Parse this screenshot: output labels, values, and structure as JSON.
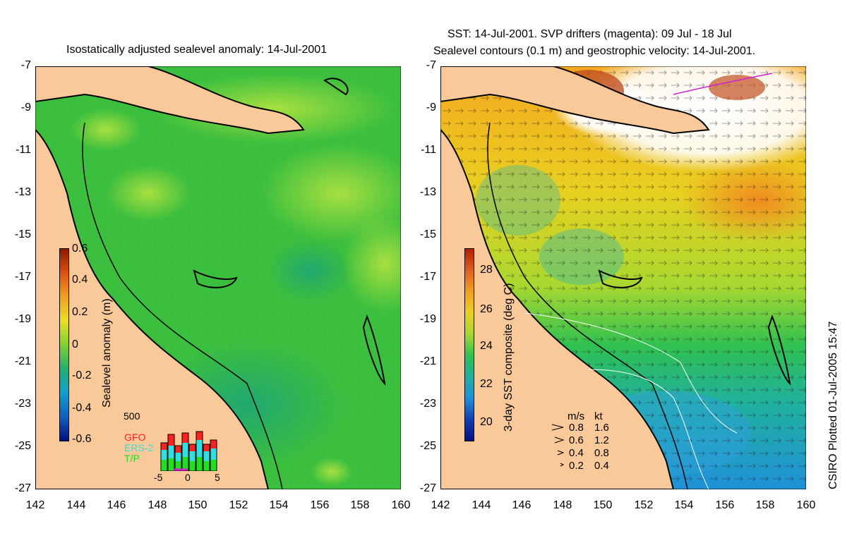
{
  "left_panel": {
    "title": "Isostatically adjusted sealevel anomaly: 14-Jul-2001",
    "colorbar_label": "Sealevel anomaly (m)",
    "colorbar_ticks": [
      "0.6",
      "0.4",
      "0.2",
      "0",
      "-0.2",
      "-0.4",
      "-0.6"
    ],
    "histogram": {
      "ymax_label": "500",
      "satellites": [
        {
          "name": "GFO",
          "color": "#ff2020"
        },
        {
          "name": "ERS-2",
          "color": "#30e0e0"
        },
        {
          "name": "T/P",
          "color": "#20e020"
        }
      ],
      "x_ticks": [
        "-5",
        "0",
        "5"
      ]
    }
  },
  "right_panel": {
    "title_line1": "SST: 14-Jul-2001. SVP drifters (magenta): 09 Jul - 18 Jul",
    "title_line2": "Sealevel contours (0.1 m) and geostrophic velocity: 14-Jul-2001.",
    "colorbar_label": "3-day SST composite (deg C)",
    "colorbar_ticks": [
      "28",
      "26",
      "24",
      "22",
      "20"
    ],
    "velocity_key": {
      "header_ms": "m/s",
      "header_kt": "kt",
      "rows": [
        {
          "ms": "0.8",
          "kt": "1.6"
        },
        {
          "ms": "0.6",
          "kt": "1.2"
        },
        {
          "ms": "0.4",
          "kt": "0.8"
        },
        {
          "ms": "0.2",
          "kt": "0.4"
        }
      ]
    }
  },
  "axes": {
    "y_ticks": [
      "-7",
      "-9",
      "-11",
      "-13",
      "-15",
      "-17",
      "-19",
      "-21",
      "-23",
      "-25",
      "-27"
    ],
    "x_ticks": [
      "142",
      "144",
      "146",
      "148",
      "150",
      "152",
      "154",
      "156",
      "158",
      "160"
    ]
  },
  "credit": "CSIRO Plotted 01-Jul-2005 15:47",
  "colors": {
    "land": "#f9c99a",
    "sla_base": "#33bb44",
    "sst_warm": "#f0b020",
    "sst_cool": "#20a0d0"
  }
}
